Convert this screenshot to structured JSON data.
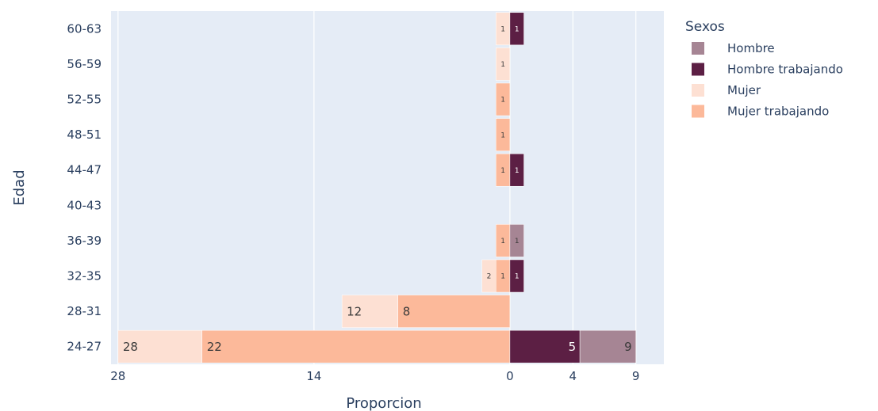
{
  "chart_data": {
    "type": "bar",
    "orientation": "horizontal",
    "barmode": "relative",
    "title": "",
    "xlabel": "Proporcion",
    "ylabel": "Edad",
    "categories": [
      "24-27",
      "28-31",
      "32-35",
      "36-39",
      "40-43",
      "44-47",
      "48-51",
      "52-55",
      "56-59",
      "60-63"
    ],
    "xlim": [
      -28.5,
      11
    ],
    "xticks": [
      {
        "value": -28,
        "label": "28"
      },
      {
        "value": -14,
        "label": "14"
      },
      {
        "value": 0,
        "label": "0"
      },
      {
        "value": 4.5,
        "label": "4"
      },
      {
        "value": 9,
        "label": "9"
      }
    ],
    "grid": true,
    "legend_title": "Sexos",
    "legend_position": "right",
    "series": [
      {
        "name": "Mujer trabajando",
        "color": "#fcb99a",
        "values": [
          -22,
          -8,
          -1,
          -1,
          0,
          -1,
          -1,
          -1,
          0,
          0
        ],
        "labels": [
          "22",
          "8",
          "1",
          "1",
          "",
          "1",
          "1",
          "1",
          "",
          ""
        ]
      },
      {
        "name": "Mujer",
        "color": "#fde0d3",
        "values": [
          -6,
          -4,
          -1,
          0,
          0,
          0,
          0,
          0,
          -1,
          -1
        ],
        "labels": [
          "28",
          "12",
          "2",
          "",
          "",
          "",
          "",
          "",
          "1",
          "1"
        ]
      },
      {
        "name": "Hombre trabajando",
        "color": "#5c1f44",
        "values": [
          5,
          0,
          1,
          0,
          0,
          1,
          0,
          0,
          0,
          1
        ],
        "labels": [
          "5",
          "",
          "1",
          "",
          "",
          "1",
          "",
          "",
          "",
          "1"
        ]
      },
      {
        "name": "Hombre",
        "color": "#a68594",
        "values": [
          4,
          0,
          0,
          1,
          0,
          0,
          0,
          0,
          0,
          0
        ],
        "labels": [
          "9",
          "",
          "",
          "1",
          "",
          "",
          "",
          "",
          "",
          ""
        ]
      }
    ],
    "legend_order": [
      "Hombre",
      "Hombre trabajando",
      "Mujer",
      "Mujer trabajando"
    ]
  }
}
